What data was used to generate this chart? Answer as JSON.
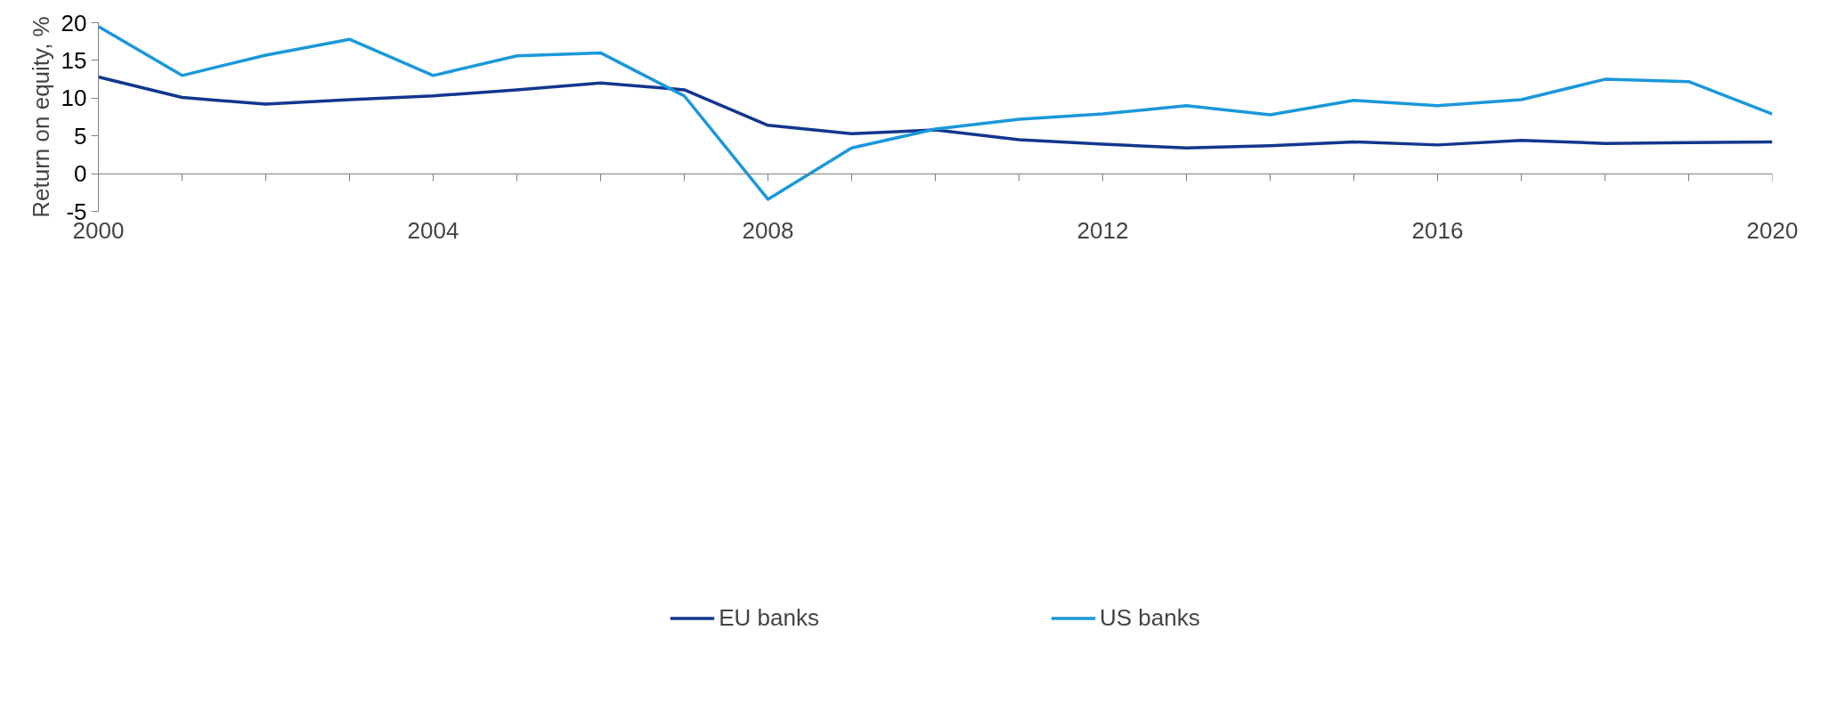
{
  "chart_data": {
    "type": "line",
    "ylabel": "Return on equity, %",
    "x": [
      2000,
      2001,
      2002,
      2003,
      2004,
      2005,
      2006,
      2007,
      2008,
      2009,
      2010,
      2011,
      2012,
      2013,
      2014,
      2015,
      2016,
      2017,
      2018,
      2019,
      2020
    ],
    "series": [
      {
        "name": "EU banks",
        "color": "#13368e",
        "values": [
          12.8,
          10.1,
          9.2,
          9.8,
          10.3,
          11.1,
          12.0,
          11.1,
          6.4,
          5.3,
          5.8,
          4.5,
          3.9,
          3.4,
          3.7,
          4.2,
          3.8,
          4.4,
          4.0,
          4.1,
          4.2
        ]
      },
      {
        "name": "US banks",
        "color": "#1a98da",
        "values": [
          19.5,
          13.0,
          15.7,
          17.8,
          13.0,
          15.6,
          16.0,
          10.3,
          -3.4,
          3.4,
          5.9,
          7.2,
          7.9,
          9.0,
          7.8,
          9.7,
          9.0,
          9.8,
          12.5,
          12.2,
          7.9
        ]
      }
    ],
    "xlim": [
      2000,
      2020
    ],
    "xticks": [
      2000,
      {
        "value": 2001,
        "label": null
      },
      {
        "value": 2002,
        "label": null
      },
      {
        "value": 2003,
        "label": null
      },
      2004,
      {
        "value": 2005,
        "label": null
      },
      {
        "value": 2006,
        "label": null
      },
      {
        "value": 2007,
        "label": null
      },
      2008,
      {
        "value": 2009,
        "label": null
      },
      {
        "value": 2010,
        "label": null
      },
      {
        "value": 2011,
        "label": null
      },
      2012,
      {
        "value": 2013,
        "label": null
      },
      {
        "value": 2014,
        "label": null
      },
      {
        "value": 2015,
        "label": null
      },
      2016,
      {
        "value": 2017,
        "label": null
      },
      {
        "value": 2018,
        "label": null
      },
      {
        "value": 2019,
        "label": null
      },
      2020
    ],
    "ylim": [
      -5,
      20
    ],
    "yticks": [
      -5,
      0,
      5,
      10,
      15,
      20
    ],
    "grid": false,
    "legend": "bottom",
    "marker": "none",
    "line_style": "solid"
  }
}
